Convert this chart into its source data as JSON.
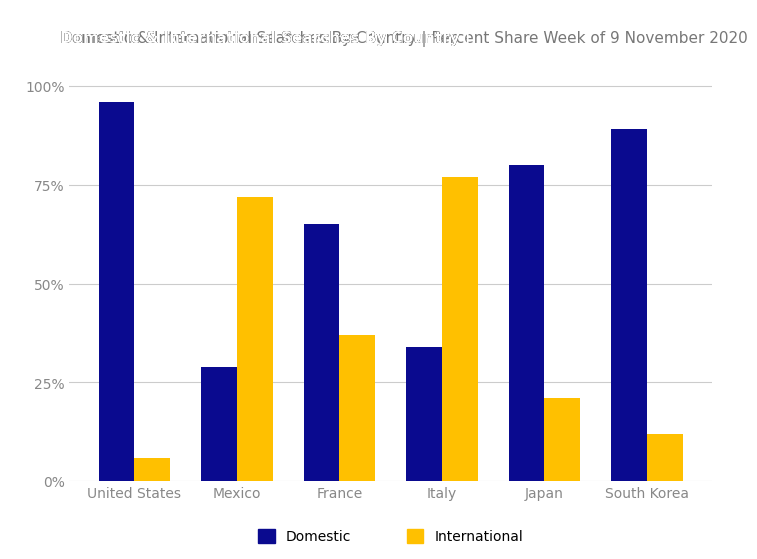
{
  "title_bold": "Domestic & International Searches By Country",
  "title_separator": " | ",
  "title_regular": "Percent Share Week of 9 November 2020",
  "categories": [
    "United States",
    "Mexico",
    "France",
    "Italy",
    "Japan",
    "South Korea"
  ],
  "domestic": [
    0.96,
    0.29,
    0.65,
    0.34,
    0.8,
    0.89
  ],
  "international": [
    0.06,
    0.72,
    0.37,
    0.77,
    0.21,
    0.12
  ],
  "domestic_color": "#0A0A8F",
  "international_color": "#FFC000",
  "bar_width": 0.35,
  "ylim": [
    0,
    1.05
  ],
  "yticks": [
    0,
    0.25,
    0.5,
    0.75,
    1.0
  ],
  "ytick_labels": [
    "0%",
    "25%",
    "50%",
    "75%",
    "100%"
  ],
  "legend_domestic": "Domestic",
  "legend_international": "International",
  "background_color": "#FFFFFF",
  "grid_color": "#CCCCCC",
  "title_fontsize": 11,
  "axis_fontsize": 10,
  "legend_fontsize": 10,
  "tick_color": "#888888"
}
